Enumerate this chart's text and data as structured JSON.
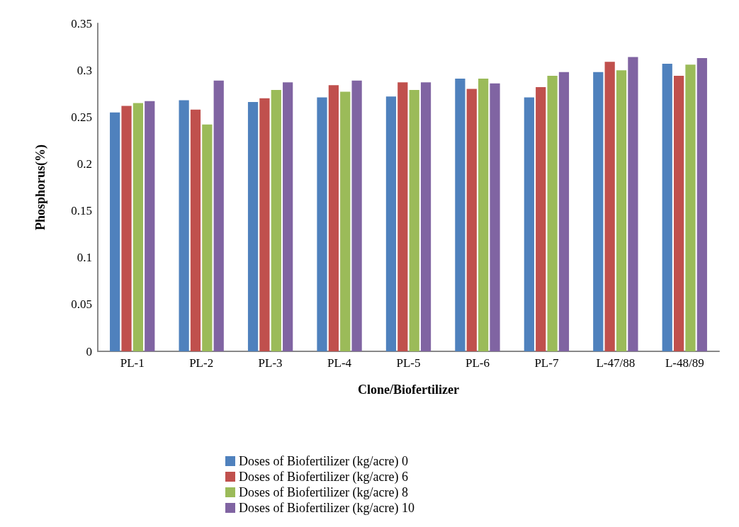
{
  "chart_data": {
    "type": "bar",
    "xlabel": "Clone/Biofertilizer",
    "ylabel": "Phosphorus(%)",
    "categories": [
      "PL-1",
      "PL-2",
      "PL-3",
      "PL-4",
      "PL-5",
      "PL-6",
      "PL-7",
      "L-47/88",
      "L-48/89"
    ],
    "series": [
      {
        "name": "Doses of Biofertilizer (kg/acre) 0",
        "color": "#4f81bd",
        "values": [
          0.255,
          0.268,
          0.266,
          0.271,
          0.272,
          0.291,
          0.271,
          0.298,
          0.307
        ]
      },
      {
        "name": "Doses of Biofertilizer (kg/acre) 6",
        "color": "#c0504d",
        "values": [
          0.262,
          0.258,
          0.27,
          0.284,
          0.287,
          0.28,
          0.282,
          0.309,
          0.294
        ]
      },
      {
        "name": "Doses of Biofertilizer (kg/acre) 8",
        "color": "#9bbb59",
        "values": [
          0.265,
          0.242,
          0.279,
          0.277,
          0.279,
          0.291,
          0.294,
          0.3,
          0.306
        ]
      },
      {
        "name": "Doses of Biofertilizer (kg/acre) 10",
        "color": "#8064a2",
        "values": [
          0.267,
          0.289,
          0.287,
          0.289,
          0.287,
          0.286,
          0.298,
          0.314,
          0.313
        ]
      }
    ],
    "ylim": [
      0,
      0.35
    ],
    "yticks": [
      0,
      0.05,
      0.1,
      0.15,
      0.2,
      0.25,
      0.3,
      0.35
    ],
    "grid": false,
    "legend": "bottom"
  }
}
